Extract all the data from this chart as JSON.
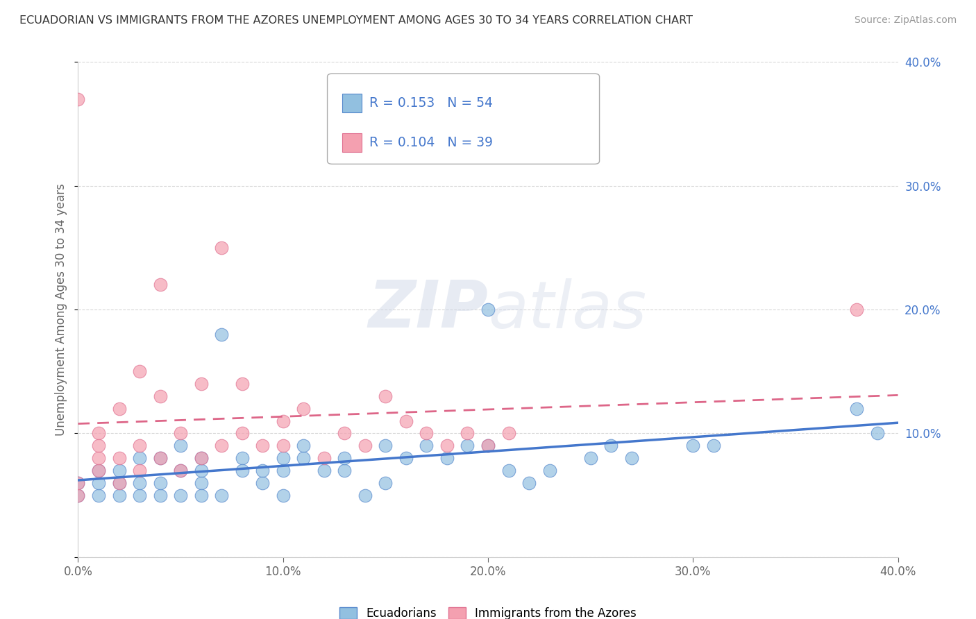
{
  "title": "ECUADORIAN VS IMMIGRANTS FROM THE AZORES UNEMPLOYMENT AMONG AGES 30 TO 34 YEARS CORRELATION CHART",
  "source": "Source: ZipAtlas.com",
  "ylabel": "Unemployment Among Ages 30 to 34 years",
  "xlim": [
    0.0,
    0.4
  ],
  "ylim": [
    0.0,
    0.4
  ],
  "xticks": [
    0.0,
    0.1,
    0.2,
    0.3,
    0.4
  ],
  "yticks": [
    0.0,
    0.1,
    0.2,
    0.3,
    0.4
  ],
  "xticklabels": [
    "0.0%",
    "10.0%",
    "20.0%",
    "30.0%",
    "40.0%"
  ],
  "right_yticklabels": [
    "",
    "10.0%",
    "20.0%",
    "30.0%",
    "40.0%"
  ],
  "blue_R": 0.153,
  "blue_N": 54,
  "pink_R": 0.104,
  "pink_N": 39,
  "blue_color": "#92C0E0",
  "pink_color": "#F4A0B0",
  "blue_edge_color": "#5588CC",
  "pink_edge_color": "#E07090",
  "blue_line_color": "#4477CC",
  "pink_line_color": "#DD6688",
  "legend_label_blue": "Ecuadorians",
  "legend_label_pink": "Immigrants from the Azores",
  "blue_scatter_x": [
    0.0,
    0.0,
    0.01,
    0.01,
    0.01,
    0.02,
    0.02,
    0.02,
    0.03,
    0.03,
    0.03,
    0.04,
    0.04,
    0.04,
    0.05,
    0.05,
    0.05,
    0.06,
    0.06,
    0.06,
    0.06,
    0.07,
    0.07,
    0.08,
    0.08,
    0.09,
    0.09,
    0.1,
    0.1,
    0.1,
    0.11,
    0.11,
    0.12,
    0.13,
    0.13,
    0.14,
    0.15,
    0.15,
    0.16,
    0.17,
    0.18,
    0.19,
    0.2,
    0.2,
    0.21,
    0.22,
    0.23,
    0.25,
    0.26,
    0.27,
    0.3,
    0.31,
    0.38,
    0.39
  ],
  "blue_scatter_y": [
    0.05,
    0.06,
    0.05,
    0.07,
    0.06,
    0.06,
    0.05,
    0.07,
    0.05,
    0.06,
    0.08,
    0.05,
    0.08,
    0.06,
    0.05,
    0.07,
    0.09,
    0.06,
    0.07,
    0.05,
    0.08,
    0.05,
    0.18,
    0.08,
    0.07,
    0.06,
    0.07,
    0.08,
    0.07,
    0.05,
    0.08,
    0.09,
    0.07,
    0.07,
    0.08,
    0.05,
    0.06,
    0.09,
    0.08,
    0.09,
    0.08,
    0.09,
    0.2,
    0.09,
    0.07,
    0.06,
    0.07,
    0.08,
    0.09,
    0.08,
    0.09,
    0.09,
    0.12,
    0.1
  ],
  "pink_scatter_x": [
    0.0,
    0.0,
    0.0,
    0.01,
    0.01,
    0.01,
    0.01,
    0.02,
    0.02,
    0.02,
    0.03,
    0.03,
    0.03,
    0.04,
    0.04,
    0.04,
    0.05,
    0.05,
    0.06,
    0.06,
    0.07,
    0.07,
    0.08,
    0.08,
    0.09,
    0.1,
    0.1,
    0.11,
    0.12,
    0.13,
    0.14,
    0.15,
    0.16,
    0.17,
    0.18,
    0.19,
    0.2,
    0.21,
    0.38
  ],
  "pink_scatter_y": [
    0.05,
    0.06,
    0.37,
    0.07,
    0.08,
    0.1,
    0.09,
    0.06,
    0.12,
    0.08,
    0.09,
    0.15,
    0.07,
    0.13,
    0.08,
    0.22,
    0.1,
    0.07,
    0.14,
    0.08,
    0.09,
    0.25,
    0.1,
    0.14,
    0.09,
    0.11,
    0.09,
    0.12,
    0.08,
    0.1,
    0.09,
    0.13,
    0.11,
    0.1,
    0.09,
    0.1,
    0.09,
    0.1,
    0.2
  ],
  "background_color": "#ffffff",
  "grid_color": "#cccccc"
}
